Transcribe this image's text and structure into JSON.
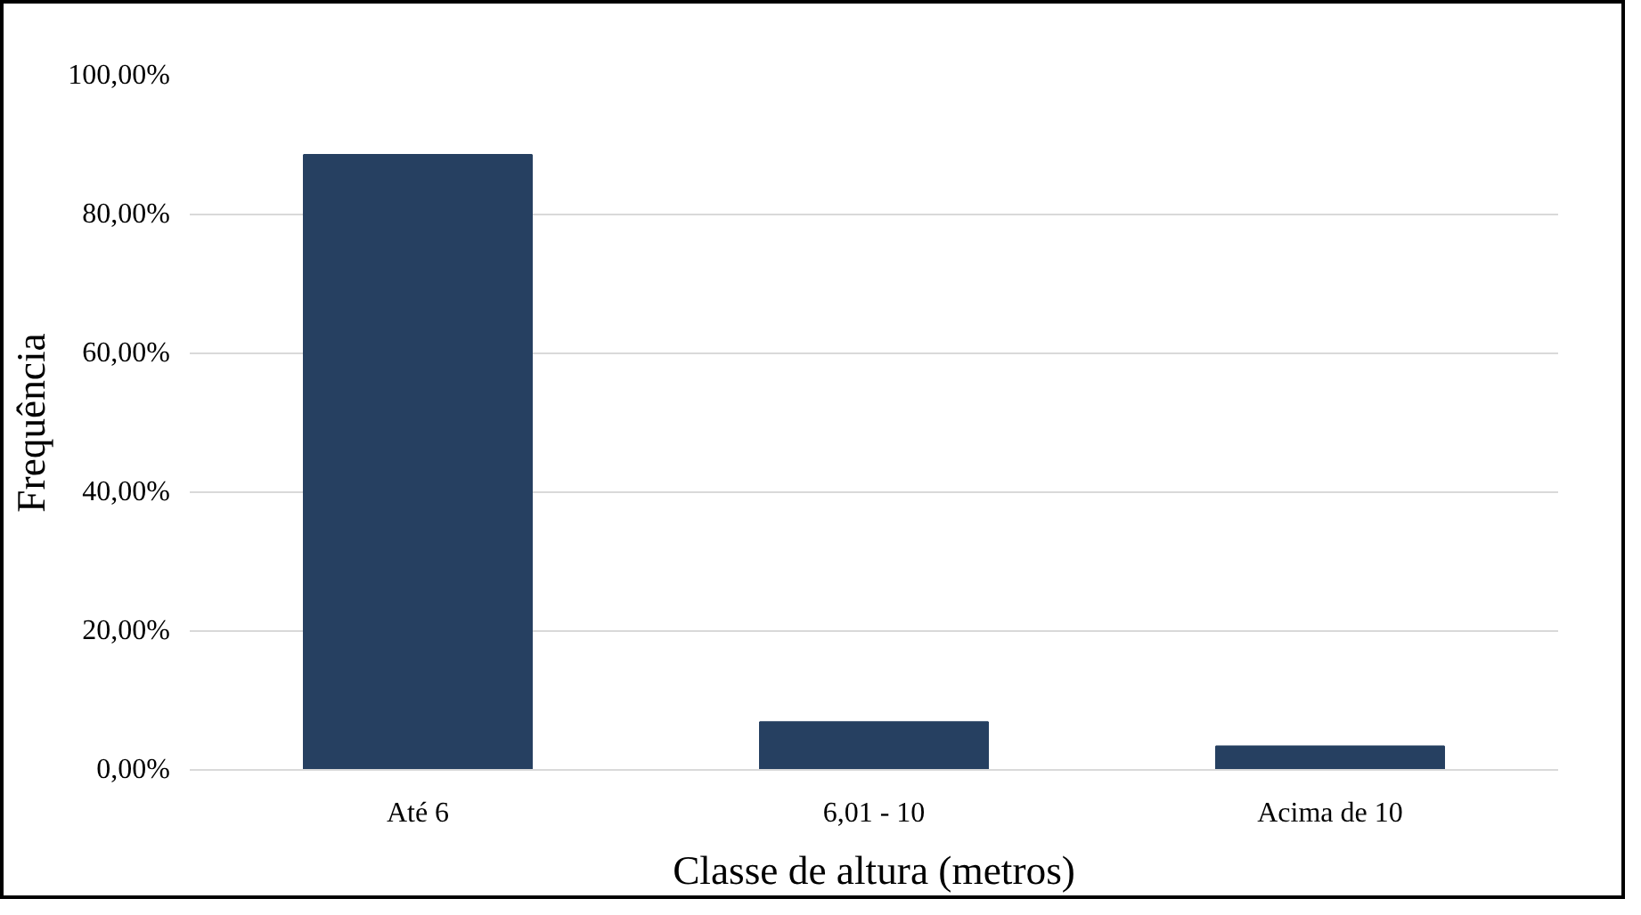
{
  "chart_data": {
    "type": "bar",
    "xlabel": "Classe de altura (metros)",
    "ylabel": "Frequência",
    "categories": [
      "Até 6",
      "6,01 - 10",
      "Acima de 10"
    ],
    "values": [
      88.6,
      6.9,
      3.4
    ],
    "color": "#264061",
    "ylim": [
      0,
      100
    ],
    "yticks": [
      {
        "value": 0,
        "label": "0,00%"
      },
      {
        "value": 20,
        "label": "20,00%"
      },
      {
        "value": 40,
        "label": "40,00%"
      },
      {
        "value": 60,
        "label": "60,00%"
      },
      {
        "value": 80,
        "label": "80,00%"
      },
      {
        "value": 100,
        "label": "100,00%"
      }
    ],
    "grid": "y"
  }
}
